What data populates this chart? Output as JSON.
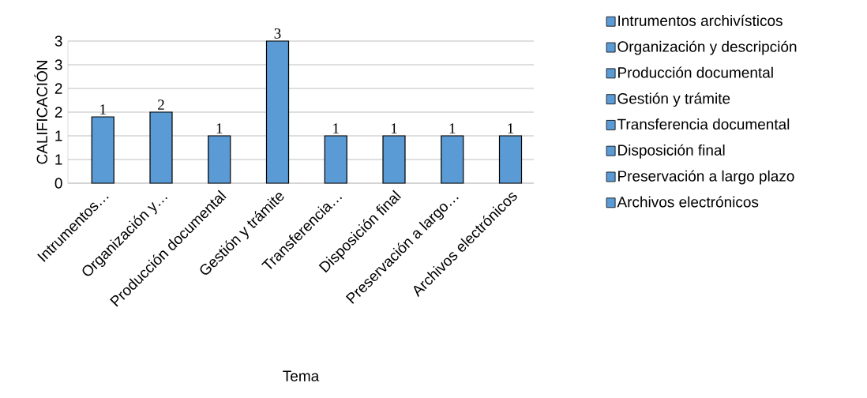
{
  "chart_data": {
    "type": "bar",
    "categories": [
      "Intrumentos…",
      "Organización y…",
      "Producción documental",
      "Gestión y trámite",
      "Transferencia…",
      "Disposición final",
      "Preservación a largo…",
      "Archivos electrónicos"
    ],
    "series": [
      {
        "name": "Intrumentos archivísticos",
        "color": "#5b9bd5",
        "values": [
          1.4,
          null,
          null,
          null,
          null,
          null,
          null,
          null
        ],
        "value_labels": [
          "1",
          null,
          null,
          null,
          null,
          null,
          null,
          null
        ]
      },
      {
        "name": "Organización y descripción",
        "color": "#5b9bd5",
        "values": [
          null,
          1.5,
          null,
          null,
          null,
          null,
          null,
          null
        ],
        "value_labels": [
          null,
          "2",
          null,
          null,
          null,
          null,
          null,
          null
        ]
      },
      {
        "name": "Producción documental",
        "color": "#5b9bd5",
        "values": [
          null,
          null,
          1.0,
          null,
          null,
          null,
          null,
          null
        ],
        "value_labels": [
          null,
          null,
          "1",
          null,
          null,
          null,
          null,
          null
        ]
      },
      {
        "name": "Gestión y trámite",
        "color": "#5b9bd5",
        "values": [
          null,
          null,
          null,
          3.0,
          null,
          null,
          null,
          null
        ],
        "value_labels": [
          null,
          null,
          null,
          "3",
          null,
          null,
          null,
          null
        ]
      },
      {
        "name": "Transferencia documental",
        "color": "#5b9bd5",
        "values": [
          null,
          null,
          null,
          null,
          1.0,
          null,
          null,
          null
        ],
        "value_labels": [
          null,
          null,
          null,
          null,
          "1",
          null,
          null,
          null
        ]
      },
      {
        "name": "Disposición final",
        "color": "#5b9bd5",
        "values": [
          null,
          null,
          null,
          null,
          null,
          1.0,
          null,
          null
        ],
        "value_labels": [
          null,
          null,
          null,
          null,
          null,
          "1",
          null,
          null
        ]
      },
      {
        "name": "Preservación a largo plazo",
        "color": "#5b9bd5",
        "values": [
          null,
          null,
          null,
          null,
          null,
          null,
          1.0,
          null
        ],
        "value_labels": [
          null,
          null,
          null,
          null,
          null,
          null,
          "1",
          null
        ]
      },
      {
        "name": "Archivos electrónicos",
        "color": "#5b9bd5",
        "values": [
          null,
          null,
          null,
          null,
          null,
          null,
          null,
          1.0
        ],
        "value_labels": [
          null,
          null,
          null,
          null,
          null,
          null,
          null,
          "1"
        ]
      }
    ],
    "xlabel": "Tema",
    "ylabel": "CALIFICACIÓN",
    "ylim": [
      0,
      3
    ],
    "yticks": [
      0,
      {
        "value": 0.5,
        "label": "1"
      },
      1,
      {
        "value": 1.5,
        "label": "2"
      },
      2,
      {
        "value": 2.5,
        "label": "3"
      },
      3
    ],
    "grid": "y",
    "legend": "right"
  }
}
